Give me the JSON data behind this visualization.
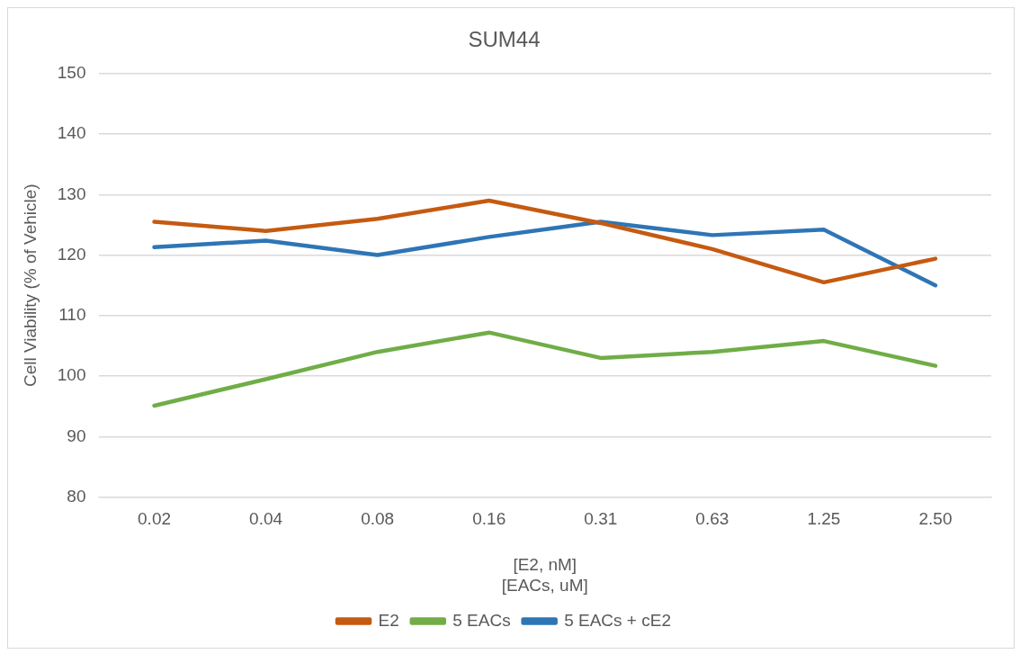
{
  "chart_data": {
    "type": "line",
    "title": "SUM44",
    "xlabel": "[E2, nM]\n[EACs, uM]",
    "ylabel": "Cell Viability (% of Vehicle)",
    "categories": [
      "0.02",
      "0.04",
      "0.08",
      "0.16",
      "0.31",
      "0.63",
      "1.25",
      "2.50"
    ],
    "series": [
      {
        "name": "E2",
        "color": "#c55a11",
        "values": [
          125.5,
          124,
          126,
          129,
          125.3,
          121,
          115.5,
          119.4
        ]
      },
      {
        "name": "5 EACs",
        "color": "#70ad47",
        "values": [
          95.1,
          99.5,
          104,
          107.2,
          103,
          104,
          105.8,
          101.7
        ]
      },
      {
        "name": "5 EACs + cE2",
        "color": "#2e75b6",
        "values": [
          121.3,
          122.4,
          120,
          123,
          125.5,
          123.3,
          124.2,
          115
        ]
      }
    ],
    "ylim": [
      80,
      150
    ],
    "yticks": [
      80,
      90,
      100,
      110,
      120,
      130,
      140,
      150
    ],
    "grid": "y",
    "legend": "bottom",
    "marker": "none",
    "line_style": "solid"
  }
}
